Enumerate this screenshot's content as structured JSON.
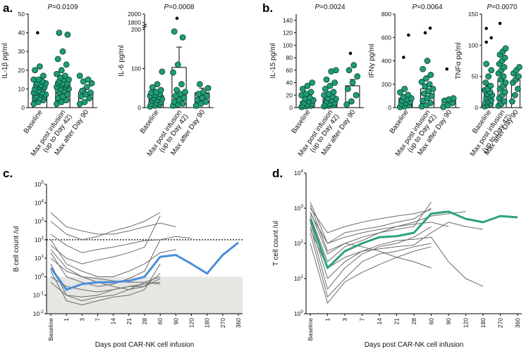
{
  "colors": {
    "green": "#1e9d77",
    "green_line": "#2aa37e",
    "blue": "#4a8ed8",
    "gray_line": "#6b6b6b",
    "shade": "#e6e6e2",
    "black": "#111111"
  },
  "panels": {
    "a": "a.",
    "b": "b.",
    "c": "c.",
    "d": "d."
  },
  "chart_data": [
    {
      "id": "a1",
      "type": "bar",
      "title_stat": "P",
      "title_value": "=0.0109",
      "ylabel": "IL-1β pg/ml",
      "ylim": [
        0,
        50
      ],
      "yticks": [
        "0",
        "10",
        "20",
        "30",
        "40",
        "50"
      ],
      "categories": [
        "Baseline",
        "Max post infusion (up to Day 42)",
        "Max after Day 90"
      ],
      "category_lines": [
        [
          "Baseline"
        ],
        [
          "Max post infusion",
          "(up to Day 42)"
        ],
        [
          "Max after Day 90"
        ]
      ],
      "bar_values": [
        8,
        13.5,
        8.3
      ],
      "error_top": [
        9.8,
        15.6,
        11
      ],
      "points": [
        [
          2,
          3,
          4,
          5,
          5,
          6,
          6,
          7,
          7,
          8,
          8,
          8,
          9,
          10,
          10,
          11,
          11,
          12,
          12,
          13,
          13,
          14,
          15,
          15,
          17,
          20,
          22
        ],
        [
          2,
          3,
          4,
          5,
          6,
          7,
          8,
          9,
          10,
          10,
          11,
          11,
          12,
          12,
          13,
          13,
          13,
          14,
          15,
          15,
          16,
          17,
          18,
          20,
          23,
          26,
          30,
          39,
          40
        ],
        [
          2,
          3,
          5,
          6,
          7,
          8,
          9,
          11,
          13,
          14,
          15,
          17
        ]
      ],
      "outliers": [
        [
          40
        ],
        [],
        []
      ]
    },
    {
      "id": "a2",
      "type": "bar",
      "title_stat": "P",
      "title_value": "=0.0008",
      "ylabel": "IL-6 pg/ml",
      "ylim": [
        0,
        200
      ],
      "ybreak": true,
      "yticks": [
        "0",
        "100",
        "200"
      ],
      "yticks_upper": [
        "1800",
        "2000"
      ],
      "categories": [
        "Baseline",
        "Max post infusion (up to Day 42)",
        "Max after Day 90"
      ],
      "category_lines": [
        [
          "Baseline"
        ],
        [
          "Max post infusion",
          "(up to Day 42)"
        ],
        [
          "Max after Day 90"
        ]
      ],
      "bar_values": [
        31,
        103,
        38
      ],
      "error_top": [
        38,
        155,
        50
      ],
      "points": [
        [
          3,
          5,
          8,
          10,
          12,
          15,
          18,
          20,
          22,
          25,
          28,
          30,
          32,
          35,
          38,
          40,
          45,
          52,
          60,
          92
        ],
        [
          5,
          8,
          10,
          15,
          20,
          25,
          30,
          35,
          40,
          45,
          60,
          90,
          110,
          180,
          195
        ],
        [
          5,
          10,
          15,
          20,
          25,
          30,
          35,
          40,
          50,
          60
        ]
      ],
      "outliers": [
        [],
        [
          1900
        ],
        []
      ]
    },
    {
      "id": "b1",
      "type": "bar",
      "title_stat": "P",
      "title_value": "=0.0024",
      "ylabel": "IL-15 pg/ml",
      "ylim": [
        0,
        150
      ],
      "yticks": [
        "0",
        "20",
        "40",
        "60",
        "80",
        "100",
        "120",
        "140"
      ],
      "categories": [
        "Baseline",
        "Max post infusion (up to Day 42)",
        "Max after Day 90"
      ],
      "category_lines": [
        [
          "Baseline"
        ],
        [
          "Max post infusion",
          "(up to Day 42)"
        ],
        [
          "Max after Day 90"
        ]
      ],
      "bar_values": [
        10,
        14,
        35
      ],
      "error_top": [
        14,
        20,
        45
      ],
      "points": [
        [
          1,
          2,
          3,
          4,
          5,
          6,
          8,
          10,
          12,
          14,
          16,
          20,
          22,
          25,
          30,
          35,
          40
        ],
        [
          2,
          3,
          4,
          5,
          6,
          8,
          10,
          12,
          14,
          15,
          18,
          20,
          22,
          25,
          30,
          35,
          40,
          45,
          58,
          60
        ],
        [
          5,
          10,
          20,
          30,
          40,
          50,
          60,
          68
        ]
      ],
      "outliers": [
        [],
        [],
        [
          87
        ]
      ]
    },
    {
      "id": "b2",
      "type": "bar",
      "title_stat": "P",
      "title_value": "=0.0064",
      "ylabel": "IFNγ pg/ml",
      "ylim": [
        0,
        800
      ],
      "yticks": [
        "0",
        "200",
        "400",
        "600",
        "800"
      ],
      "categories": [
        "Baseline",
        "Max post infusion (up to Day 42)",
        "Max after Day 90"
      ],
      "category_lines": [
        [
          "Baseline"
        ],
        [
          "Max post infusion",
          "(up to Day 42)"
        ],
        [
          "Max after Day 90"
        ]
      ],
      "bar_values": [
        82,
        160,
        62
      ],
      "error_top": [
        110,
        200,
        75
      ],
      "points": [
        [
          5,
          10,
          20,
          30,
          40,
          50,
          60,
          70,
          80,
          90,
          110,
          130,
          160
        ],
        [
          10,
          20,
          40,
          60,
          80,
          100,
          120,
          140,
          160,
          180,
          200,
          220,
          250,
          280,
          330,
          400
        ],
        [
          5,
          20,
          40,
          60,
          70,
          80
        ]
      ],
      "outliers": [
        [
          430,
          620
        ],
        [
          640,
          680
        ],
        [
          330
        ]
      ]
    },
    {
      "id": "b3",
      "type": "bar",
      "title_stat": "P",
      "title_value": "=0.0070",
      "ylabel": "TNFα pg/ml",
      "ylim": [
        0,
        150
      ],
      "yticks": [
        "0",
        "50",
        "100",
        "150"
      ],
      "categories": [
        "Baseline",
        "Max post infusion (up to Day 42)",
        "Max after Day 90"
      ],
      "category_lines": [
        [
          "Baseline"
        ],
        [
          "Max post infusion",
          "(up to Day 42)"
        ],
        [
          "Max after Day 90"
        ]
      ],
      "bar_values": [
        27,
        44,
        44
      ],
      "error_top": [
        35,
        52,
        52
      ],
      "points": [
        [
          2,
          4,
          6,
          8,
          10,
          12,
          15,
          18,
          20,
          22,
          25,
          28,
          30,
          35,
          40,
          50,
          60,
          70
        ],
        [
          3,
          6,
          10,
          15,
          20,
          25,
          30,
          35,
          40,
          45,
          50,
          55,
          60,
          65,
          70,
          75,
          80,
          85,
          90,
          95
        ],
        [
          10,
          20,
          30,
          40,
          45,
          50,
          55,
          60,
          65
        ]
      ],
      "outliers": [
        [
          105,
          112,
          127
        ],
        [
          135
        ],
        []
      ]
    },
    {
      "id": "c",
      "type": "line",
      "ylabel": "B cell count  /ul",
      "xlabel": "Days post CAR-NK cell infusion",
      "x": [
        "Baseline",
        "1",
        "3",
        "7",
        "14",
        "21",
        "28",
        "60",
        "90",
        "120",
        "180",
        "270",
        "360"
      ],
      "yscale": "log",
      "ylim": [
        0.01,
        100000
      ],
      "yticks": [
        "10-2",
        "10-1",
        "100",
        "101",
        "102",
        "103",
        "104",
        "105"
      ],
      "threshold": 100,
      "shaded_below": 1,
      "series": [
        {
          "name": "median",
          "values": [
            3,
            0.2,
            0.4,
            0.5,
            0.5,
            0.6,
            1.0,
            12,
            15,
            5,
            1.5,
            15,
            70
          ]
        },
        {
          "name": "s1",
          "values": [
            200,
            50,
            20,
            30,
            40,
            60,
            90,
            100,
            150,
            120,
            null,
            null,
            null
          ]
        },
        {
          "name": "s2",
          "values": [
            50,
            10,
            5,
            8,
            12,
            20,
            40,
            2000,
            null,
            null,
            null,
            null,
            null
          ]
        },
        {
          "name": "s3",
          "values": [
            1000,
            200,
            100,
            150,
            300,
            500,
            1000,
            3000,
            null,
            null,
            null,
            null,
            null
          ]
        },
        {
          "name": "s4",
          "values": [
            20,
            1,
            0.5,
            0.3,
            0.4,
            0.8,
            2,
            100,
            null,
            null,
            null,
            null,
            null
          ]
        },
        {
          "name": "s5",
          "values": [
            5,
            0.1,
            0.05,
            0.08,
            0.1,
            0.2,
            0.5,
            1,
            null,
            null,
            null,
            null,
            null
          ]
        },
        {
          "name": "s6",
          "values": [
            2,
            0.05,
            0.03,
            0.05,
            0.08,
            0.1,
            0.2,
            5,
            null,
            null,
            null,
            null,
            null
          ]
        },
        {
          "name": "s7",
          "values": [
            100,
            5,
            2,
            1,
            1,
            2,
            5,
            20,
            30,
            null,
            null,
            null,
            null
          ]
        },
        {
          "name": "s8",
          "values": [
            0.5,
            0.1,
            0.08,
            0.1,
            0.2,
            0.3,
            0.4,
            0.5,
            null,
            null,
            null,
            null,
            null
          ]
        },
        {
          "name": "s9",
          "values": [
            10,
            2,
            1,
            0.8,
            0.6,
            0.5,
            0.5,
            0.4,
            null,
            null,
            null,
            null,
            null
          ]
        },
        {
          "name": "s10",
          "values": [
            3000,
            500,
            300,
            200,
            200,
            300,
            500,
            800,
            500,
            null,
            null,
            null,
            null
          ]
        },
        {
          "name": "s11",
          "values": [
            1,
            0.3,
            0.2,
            0.15,
            0.2,
            0.3,
            0.3,
            0.8,
            null,
            null,
            null,
            null,
            null
          ]
        },
        {
          "name": "s12",
          "values": [
            30,
            3,
            1,
            0.5,
            0.3,
            0.2,
            0.3,
            1.5,
            null,
            null,
            null,
            null,
            null
          ]
        }
      ]
    },
    {
      "id": "d",
      "type": "line",
      "ylabel": "T cell count  /ul",
      "xlabel": "Days post CAR-NK cell infusion",
      "x": [
        "Baseline",
        "1",
        "3",
        "7",
        "14",
        "21",
        "28",
        "60",
        "90",
        "120",
        "180",
        "270",
        "360"
      ],
      "yscale": "log",
      "ylim": [
        1,
        10000
      ],
      "yticks": [
        "100",
        "101",
        "102",
        "103",
        "104"
      ],
      "series": [
        {
          "name": "median",
          "values": [
            500,
            20,
            60,
            100,
            150,
            160,
            200,
            700,
            800,
            500,
            400,
            600,
            550
          ]
        },
        {
          "name": "s1",
          "values": [
            1500,
            100,
            200,
            250,
            300,
            400,
            500,
            1000,
            null,
            null,
            null,
            null,
            null
          ]
        },
        {
          "name": "s2",
          "values": [
            300,
            5,
            20,
            50,
            80,
            100,
            150,
            300,
            null,
            null,
            null,
            null,
            null
          ]
        },
        {
          "name": "s3",
          "values": [
            800,
            50,
            100,
            150,
            200,
            300,
            400,
            600,
            700,
            800,
            null,
            null,
            null
          ]
        },
        {
          "name": "s4",
          "values": [
            200,
            3,
            10,
            30,
            50,
            60,
            80,
            100,
            null,
            null,
            null,
            null,
            null
          ]
        },
        {
          "name": "s5",
          "values": [
            1000,
            200,
            300,
            400,
            500,
            600,
            700,
            900,
            null,
            null,
            null,
            null,
            null
          ]
        },
        {
          "name": "s6",
          "values": [
            400,
            10,
            30,
            60,
            90,
            120,
            130,
            150,
            30,
            10,
            6,
            null,
            null
          ]
        },
        {
          "name": "s7",
          "values": [
            600,
            30,
            80,
            120,
            200,
            250,
            300,
            1500,
            null,
            null,
            null,
            null,
            null
          ]
        },
        {
          "name": "s8",
          "values": [
            100,
            2,
            8,
            15,
            25,
            40,
            60,
            80,
            null,
            null,
            null,
            null,
            null
          ]
        },
        {
          "name": "s9",
          "values": [
            700,
            100,
            150,
            200,
            250,
            300,
            350,
            400,
            300,
            null,
            null,
            null,
            null
          ]
        },
        {
          "name": "s10",
          "values": [
            250,
            20,
            40,
            60,
            70,
            80,
            90,
            200,
            400,
            300,
            250,
            null,
            null
          ]
        },
        {
          "name": "s11",
          "values": [
            1200,
            60,
            100,
            80,
            60,
            40,
            30,
            20,
            null,
            null,
            null,
            null,
            null
          ]
        }
      ]
    }
  ]
}
